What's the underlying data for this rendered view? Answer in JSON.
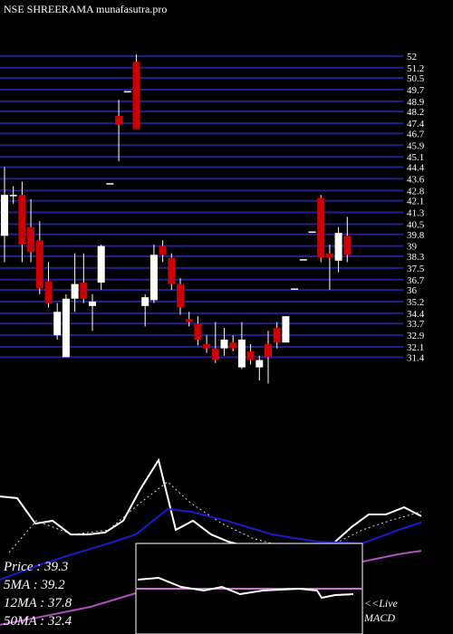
{
  "header": {
    "title": "NSE SHREERAMA munafasutra.pro"
  },
  "chart_data": [
    {
      "type": "candlestick",
      "up_color": "#ffffff",
      "down_color": "#cc0000",
      "grid": true,
      "grid_color": "#22228c",
      "ylim": [
        29.5,
        52.3
      ],
      "yticks": [
        52.0,
        51.2,
        50.5,
        49.7,
        48.9,
        48.2,
        47.4,
        46.7,
        45.9,
        45.1,
        44.4,
        43.6,
        42.8,
        42.1,
        41.3,
        40.5,
        39.8,
        39.0,
        38.3,
        37.5,
        36.7,
        36.0,
        35.2,
        34.4,
        33.7,
        32.9,
        32.1,
        31.4
      ],
      "open": [
        39.7,
        42.5,
        42.5,
        40.3,
        39.4,
        36.6,
        32.9,
        31.4,
        35.4,
        36.5,
        34.9,
        36.5,
        43.3,
        47.9,
        49.6,
        51.6,
        34.9,
        35.3,
        39.0,
        38.2,
        36.4,
        34.0,
        33.7,
        32.3,
        32.0,
        32.0,
        32.4,
        30.7,
        31.8,
        30.7,
        32.3,
        33.4,
        32.4,
        36.1,
        38.1,
        40.0,
        42.3,
        38.5,
        38.0,
        39.7
      ],
      "high": [
        44.4,
        43.1,
        43.4,
        42.2,
        40.7,
        37.9,
        35.1,
        35.7,
        38.5,
        38.5,
        35.7,
        39.1,
        43.3,
        49.0,
        49.6,
        52.1,
        35.7,
        39.1,
        39.4,
        38.5,
        36.8,
        34.5,
        34.2,
        32.9,
        33.8,
        33.4,
        32.9,
        33.8,
        32.3,
        31.5,
        33.2,
        33.8,
        34.2,
        36.1,
        38.1,
        40.0,
        42.5,
        39.1,
        40.3,
        41.0
      ],
      "low": [
        37.9,
        41.9,
        37.9,
        37.9,
        35.7,
        34.8,
        32.6,
        31.4,
        34.5,
        35.1,
        33.2,
        36.0,
        43.3,
        44.8,
        49.6,
        47.0,
        33.5,
        35.1,
        37.9,
        36.0,
        34.3,
        33.5,
        32.2,
        31.7,
        31.0,
        31.5,
        31.8,
        30.6,
        30.9,
        29.8,
        29.6,
        32.0,
        32.4,
        36.1,
        38.1,
        40.0,
        37.9,
        36.0,
        37.2,
        37.9
      ],
      "close": [
        42.5,
        42.5,
        39.1,
        38.6,
        36.1,
        35.1,
        34.5,
        35.4,
        36.4,
        35.4,
        35.2,
        39.0,
        43.3,
        47.3,
        49.6,
        47.0,
        35.5,
        38.4,
        38.4,
        36.4,
        34.8,
        33.8,
        32.6,
        32.0,
        31.2,
        32.6,
        32.0,
        32.6,
        31.2,
        31.2,
        31.4,
        32.4,
        34.2,
        36.1,
        38.1,
        40.0,
        38.2,
        38.2,
        39.9,
        38.4
      ]
    },
    {
      "type": "line",
      "xlim": [
        0,
        500
      ],
      "ylim": [
        0,
        100
      ],
      "series": [
        {
          "color": "#ffffff",
          "width": 2,
          "x": [
            0,
            19,
            39,
            58,
            78,
            97,
            116,
            136,
            155,
            175,
            194,
            213,
            233,
            252,
            271,
            291,
            310,
            329,
            349,
            368,
            388,
            407,
            426,
            446,
            465
          ],
          "values": [
            63.3,
            62.5,
            50.8,
            52.1,
            45.8,
            45.8,
            46.7,
            52.1,
            66.7,
            80,
            47.9,
            52.1,
            45.8,
            42.5,
            40.4,
            37.5,
            36.7,
            37.5,
            38.3,
            41.7,
            49.2,
            55,
            55,
            58.3,
            54.2
          ]
        },
        {
          "color": "#dddddd",
          "width": 1,
          "dash": true,
          "x": [
            10,
            40,
            80,
            120,
            155,
            185,
            210,
            245,
            280,
            320,
            370,
            400,
            430,
            465
          ],
          "values": [
            37.5,
            52.1,
            45.8,
            47.9,
            60.4,
            70,
            60.4,
            50.8,
            43.8,
            39.6,
            41.7,
            47.9,
            52.1,
            56.3
          ]
        },
        {
          "color": "#1a1acc",
          "width": 2,
          "x": [
            0,
            40,
            80,
            120,
            150,
            185,
            210,
            250,
            300,
            350,
            400,
            440,
            465
          ],
          "values": [
            25,
            31.3,
            36.7,
            41.7,
            45.8,
            57.5,
            56.3,
            52.1,
            45.8,
            42.5,
            41.7,
            47.9,
            51.3
          ]
        },
        {
          "color": "#b04fc0",
          "width": 2,
          "x": [
            0,
            50,
            100,
            150,
            200,
            250,
            300,
            350,
            400,
            440,
            465
          ],
          "values": [
            4.2,
            8.3,
            12.5,
            18.8,
            21.7,
            25,
            28.3,
            31.3,
            33.3,
            36.7,
            38.3
          ]
        }
      ]
    },
    {
      "type": "macd",
      "title": "MACD",
      "live_label": "<<Live",
      "xlim": [
        150,
        400
      ],
      "ylim": [
        -1,
        1
      ],
      "baseline": 0,
      "baseline_color": "#d070d0",
      "series": [
        {
          "color": "#ffffff",
          "x": [
            152,
            175,
            200,
            225,
            245,
            265,
            290,
            330,
            350,
            355,
            370,
            390
          ],
          "values": [
            0.2,
            0.24,
            0.04,
            -0.04,
            0.04,
            -0.12,
            -0.04,
            0,
            -0.04,
            -0.2,
            -0.14,
            -0.12
          ]
        }
      ]
    }
  ],
  "info": [
    "Price : 39.3",
    "5MA : 39.2",
    "12MA : 37.8",
    "50MA : 32.4"
  ]
}
